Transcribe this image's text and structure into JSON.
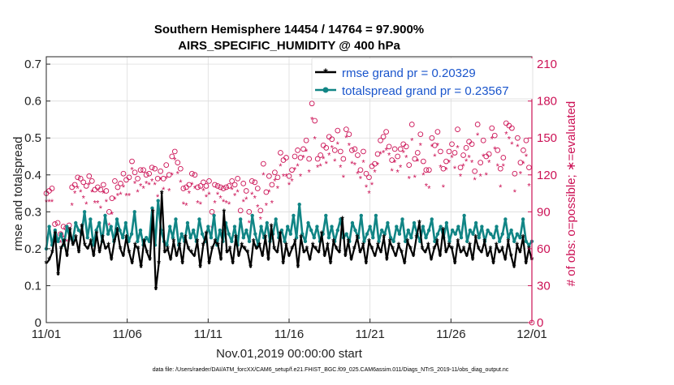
{
  "chart_data": {
    "type": "line",
    "title": "Southern Hemisphere 14454 / 14764 = 97.900%",
    "subtitle": "AIRS_SPECIFIC_HUMIDITY @ 400 hPa",
    "xlabel": "Nov.01,2019 00:00:00 start",
    "ylabel": "rmse and totalspread",
    "y2label": "# of obs: o=possible; ∗=evaluated",
    "footnote": "data file: /Users/raeder/DAI/ATM_forcXX/CAM6_setup/f.e21.FHIST_BGC.f09_025.CAM6assim.011/Diags_NTrS_2019-11/obs_diag_output.nc",
    "x_range": [
      0,
      30
    ],
    "x_ticks": [
      0,
      5,
      10,
      15,
      20,
      25,
      30
    ],
    "x_tick_labels": [
      "11/01",
      "11/06",
      "11/11",
      "11/16",
      "11/21",
      "11/26",
      "12/01"
    ],
    "ylim": [
      0,
      0.72
    ],
    "y_ticks": [
      0,
      0.1,
      0.2,
      0.3,
      0.4,
      0.5,
      0.6,
      0.7
    ],
    "y_tick_labels": [
      "0",
      "0.1",
      "0.2",
      "0.3",
      "0.4",
      "0.5",
      "0.6",
      "0.7"
    ],
    "y2lim": [
      0,
      216
    ],
    "y2_ticks": [
      0,
      30,
      60,
      90,
      120,
      150,
      180,
      210
    ],
    "y2_tick_labels": [
      "0",
      "30",
      "60",
      "90",
      "120",
      "150",
      "180",
      "210"
    ],
    "legend": [
      "rmse grand pr = 0.20329",
      "totalspread grand pr = 0.23567"
    ],
    "colors": {
      "rmse": "#000000",
      "spread": "#118585",
      "obs": "#cc1155",
      "legend_text": "#1a55cc"
    },
    "rmse": [
      0.16,
      0.17,
      0.19,
      0.24,
      0.13,
      0.2,
      0.22,
      0.18,
      0.25,
      0.21,
      0.23,
      0.19,
      0.26,
      0.21,
      0.2,
      0.22,
      0.18,
      0.24,
      0.19,
      0.23,
      0.2,
      0.21,
      0.17,
      0.22,
      0.25,
      0.2,
      0.18,
      0.23,
      0.19,
      0.16,
      0.21,
      0.2,
      0.15,
      0.22,
      0.19,
      0.17,
      0.3,
      0.09,
      0.16,
      0.35,
      0.19,
      0.2,
      0.17,
      0.22,
      0.18,
      0.21,
      0.16,
      0.23,
      0.2,
      0.19,
      0.18,
      0.22,
      0.15,
      0.21,
      0.24,
      0.16,
      0.2,
      0.22,
      0.21,
      0.17,
      0.3,
      0.19,
      0.2,
      0.16,
      0.23,
      0.18,
      0.21,
      0.2,
      0.19,
      0.15,
      0.22,
      0.2,
      0.21,
      0.18,
      0.23,
      0.17,
      0.26,
      0.2,
      0.19,
      0.24,
      0.16,
      0.21,
      0.18,
      0.2,
      0.22,
      0.15,
      0.23,
      0.19,
      0.2,
      0.17,
      0.21,
      0.2,
      0.19,
      0.24,
      0.18,
      0.21,
      0.16,
      0.22,
      0.2,
      0.19,
      0.28,
      0.18,
      0.22,
      0.17,
      0.2,
      0.23,
      0.19,
      0.21,
      0.16,
      0.22,
      0.2,
      0.18,
      0.21,
      0.19,
      0.23,
      0.17,
      0.22,
      0.2,
      0.18,
      0.21,
      0.19,
      0.16,
      0.22,
      0.2,
      0.18,
      0.23,
      0.27,
      0.2,
      0.19,
      0.21,
      0.17,
      0.2,
      0.22,
      0.18,
      0.25,
      0.19,
      0.21,
      0.2,
      0.16,
      0.22,
      0.19,
      0.2,
      0.18,
      0.21,
      0.17,
      0.23,
      0.2,
      0.19,
      0.22,
      0.18,
      0.2,
      0.16,
      0.21,
      0.19,
      0.2,
      0.17,
      0.22,
      0.18,
      0.15,
      0.21,
      0.19,
      0.23,
      0.16,
      0.2,
      0.17
    ],
    "spread": [
      0.2,
      0.26,
      0.21,
      0.25,
      0.22,
      0.24,
      0.21,
      0.26,
      0.23,
      0.22,
      0.27,
      0.25,
      0.24,
      0.3,
      0.23,
      0.28,
      0.21,
      0.25,
      0.27,
      0.22,
      0.29,
      0.24,
      0.26,
      0.22,
      0.28,
      0.25,
      0.23,
      0.27,
      0.22,
      0.24,
      0.3,
      0.22,
      0.25,
      0.21,
      0.23,
      0.22,
      0.31,
      0.21,
      0.33,
      0.25,
      0.22,
      0.21,
      0.26,
      0.23,
      0.28,
      0.21,
      0.24,
      0.22,
      0.27,
      0.23,
      0.25,
      0.22,
      0.28,
      0.24,
      0.22,
      0.26,
      0.23,
      0.29,
      0.21,
      0.25,
      0.22,
      0.27,
      0.24,
      0.22,
      0.26,
      0.21,
      0.28,
      0.23,
      0.25,
      0.22,
      0.29,
      0.24,
      0.21,
      0.26,
      0.23,
      0.27,
      0.22,
      0.24,
      0.28,
      0.23,
      0.25,
      0.22,
      0.26,
      0.24,
      0.29,
      0.23,
      0.32,
      0.24,
      0.22,
      0.27,
      0.25,
      0.23,
      0.26,
      0.22,
      0.24,
      0.29,
      0.23,
      0.26,
      0.22,
      0.25,
      0.28,
      0.23,
      0.24,
      0.22,
      0.27,
      0.25,
      0.23,
      0.29,
      0.22,
      0.24,
      0.26,
      0.23,
      0.29,
      0.22,
      0.25,
      0.24,
      0.27,
      0.23,
      0.22,
      0.26,
      0.24,
      0.28,
      0.22,
      0.25,
      0.23,
      0.27,
      0.24,
      0.22,
      0.26,
      0.23,
      0.25,
      0.28,
      0.22,
      0.24,
      0.26,
      0.23,
      0.27,
      0.22,
      0.25,
      0.24,
      0.26,
      0.23,
      0.29,
      0.22,
      0.25,
      0.24,
      0.27,
      0.23,
      0.26,
      0.22,
      0.25,
      0.24,
      0.23,
      0.26,
      0.22,
      0.24,
      0.28,
      0.23,
      0.25,
      0.22,
      0.24,
      0.23,
      0.28,
      0.22,
      0.21,
      0.22
    ],
    "obs_possible": [
      105,
      107,
      109,
      80,
      81,
      72,
      78,
      77,
      79,
      110,
      112,
      118,
      117,
      114,
      111,
      119,
      115,
      108,
      110,
      108,
      112,
      107,
      90,
      101,
      115,
      110,
      113,
      121,
      116,
      118,
      131,
      122,
      117,
      124,
      124,
      120,
      121,
      126,
      125,
      117,
      123,
      117,
      128,
      120,
      135,
      139,
      130,
      125,
      109,
      110,
      112,
      121,
      120,
      110,
      111,
      114,
      111,
      115,
      90,
      112,
      111,
      110,
      109,
      110,
      111,
      115,
      112,
      117,
      91,
      113,
      107,
      90,
      115,
      114,
      109,
      91,
      129,
      106,
      119,
      112,
      122,
      118,
      138,
      132,
      134,
      119,
      124,
      135,
      140,
      134,
      141,
      148,
      133,
      178,
      164,
      133,
      136,
      144,
      142,
      151,
      149,
      140,
      156,
      139,
      133,
      157,
      153,
      140,
      141,
      136,
      124,
      139,
      121,
      118,
      127,
      129,
      137,
      148,
      151,
      155,
      143,
      132,
      141,
      135,
      141,
      145,
      143,
      128,
      161,
      133,
      138,
      153,
      131,
      124,
      124,
      150,
      144,
      155,
      139,
      125,
      131,
      139,
      145,
      138,
      157,
      126,
      136,
      142,
      147,
      145,
      123,
      161,
      130,
      148,
      135,
      137,
      158,
      152,
      140,
      125,
      134,
      162,
      160,
      158,
      121,
      150,
      130,
      140,
      148,
      126,
      0
    ]
  }
}
